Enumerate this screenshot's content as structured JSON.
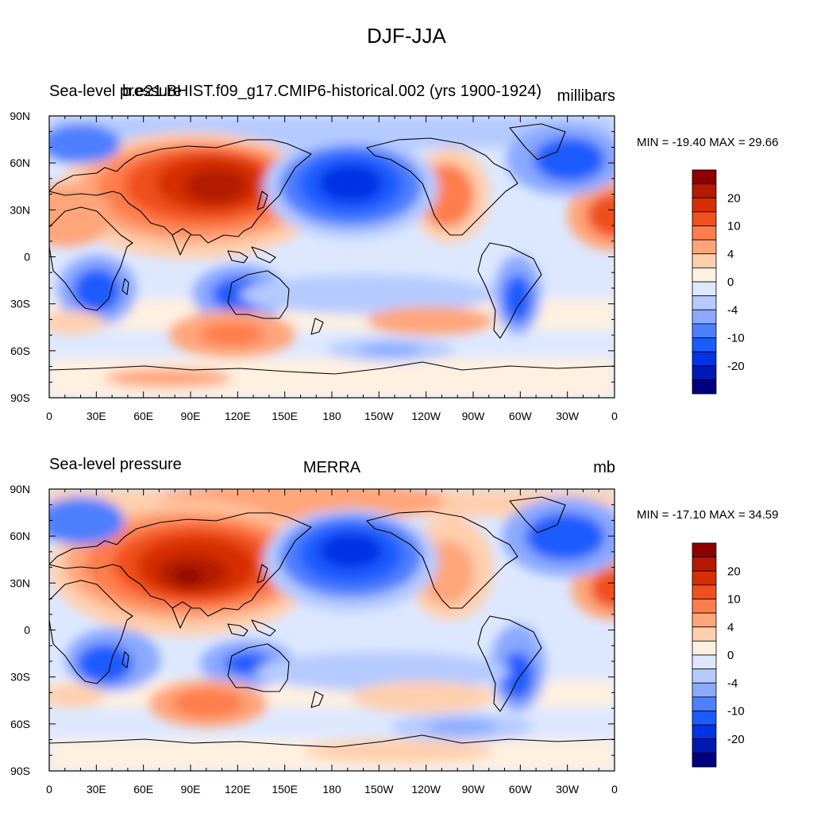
{
  "title": "DJF-JJA",
  "colors": [
    "#00007f",
    "#0019b2",
    "#0033e5",
    "#1a5cff",
    "#4d7fff",
    "#8aa9ff",
    "#b5caff",
    "#dde8ff",
    "#fff0e0",
    "#ffcfae",
    "#ffa57a",
    "#ff7d4c",
    "#f0501e",
    "#d62e00",
    "#b31a00",
    "#8c0000"
  ],
  "colorbar_labels": [
    "20",
    "10",
    "4",
    "0",
    "-4",
    "-10",
    "-20"
  ],
  "lon_labels": [
    "0",
    "30E",
    "60E",
    "90E",
    "120E",
    "150E",
    "180",
    "150W",
    "120W",
    "90W",
    "60W",
    "30W",
    "0"
  ],
  "lat_labels": [
    "90N",
    "60N",
    "30N",
    "0",
    "30S",
    "60S",
    "90S"
  ],
  "panels": [
    {
      "left_title": "Sea-level pressure",
      "center_title": "b.e21.BHIST.f09_g17.CMIP6-historical.002 (yrs 1900-1924)",
      "right_title": "millibars",
      "minmax": "MIN = -19.40 MAX =  29.66"
    },
    {
      "left_title": "Sea-level pressure",
      "center_title": "MERRA",
      "right_title": "mb",
      "minmax": "MIN = -17.10 MAX =  34.59"
    }
  ]
}
